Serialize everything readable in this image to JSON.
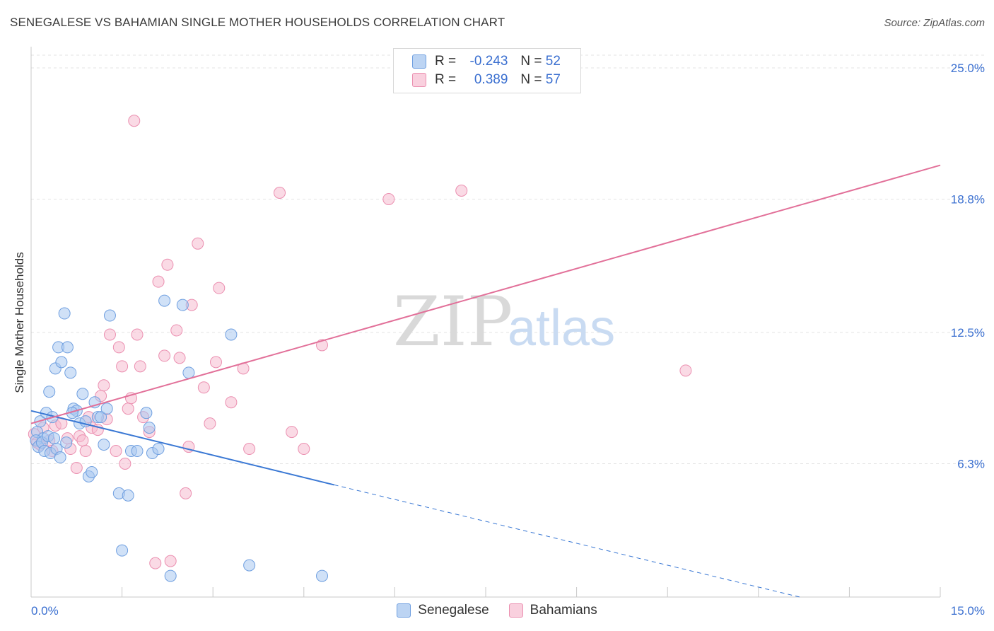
{
  "title": "SENEGALESE VS BAHAMIAN SINGLE MOTHER HOUSEHOLDS CORRELATION CHART",
  "source": "Source: ZipAtlas.com",
  "watermark": {
    "zip": "ZIP",
    "atlas": "atlas"
  },
  "legend": {
    "r_label": "R =",
    "n_label": "N =",
    "series1": {
      "r": "-0.243",
      "n": "52"
    },
    "series2": {
      "r": "0.389",
      "n": "57"
    }
  },
  "colors": {
    "blue_fill": "#a9c8f0",
    "blue_stroke": "#6f9fe0",
    "blue_line": "#3a78d4",
    "pink_fill": "#f6bcd0",
    "pink_stroke": "#eb8fb0",
    "pink_line": "#e27099",
    "tick_label": "#3a6fd0"
  },
  "chart_data": {
    "type": "scatter",
    "title": "SENEGALESE VS BAHAMIAN SINGLE MOTHER HOUSEHOLDS CORRELATION CHART",
    "xlabel": "",
    "ylabel": "Single Mother Households",
    "xlim": [
      0,
      15
    ],
    "ylim": [
      0,
      25.6
    ],
    "x_tick_labels": [
      "0.0%",
      "15.0%"
    ],
    "y_ticks": [
      6.3,
      12.5,
      18.8,
      25.0
    ],
    "y_tick_labels": [
      "6.3%",
      "12.5%",
      "18.8%",
      "25.0%"
    ],
    "series": [
      {
        "name": "Senegalese",
        "trend": {
          "x0": 0,
          "y0": 8.8,
          "x1": 5.0,
          "y1": 5.3,
          "dash_to_x": 15.0,
          "dash_to_y": -1.6
        },
        "points": [
          [
            0.1,
            7.8
          ],
          [
            0.15,
            8.3
          ],
          [
            0.2,
            7.5
          ],
          [
            0.25,
            8.7
          ],
          [
            0.3,
            9.7
          ],
          [
            0.35,
            8.5
          ],
          [
            0.4,
            10.8
          ],
          [
            0.45,
            11.8
          ],
          [
            0.5,
            11.1
          ],
          [
            0.55,
            13.4
          ],
          [
            0.6,
            11.8
          ],
          [
            0.65,
            10.6
          ],
          [
            0.7,
            8.9
          ],
          [
            0.75,
            8.8
          ],
          [
            0.8,
            8.2
          ],
          [
            0.85,
            9.6
          ],
          [
            0.9,
            8.3
          ],
          [
            0.95,
            5.7
          ],
          [
            1.0,
            5.9
          ],
          [
            1.05,
            9.2
          ],
          [
            1.1,
            8.5
          ],
          [
            1.15,
            8.5
          ],
          [
            1.2,
            7.2
          ],
          [
            1.25,
            8.9
          ],
          [
            1.3,
            13.3
          ],
          [
            1.45,
            4.9
          ],
          [
            1.6,
            4.8
          ],
          [
            1.65,
            6.9
          ],
          [
            1.75,
            6.9
          ],
          [
            1.5,
            2.2
          ],
          [
            1.9,
            8.7
          ],
          [
            1.95,
            8.0
          ],
          [
            2.0,
            6.8
          ],
          [
            2.1,
            7.0
          ],
          [
            2.2,
            14.0
          ],
          [
            2.3,
            1.0
          ],
          [
            2.5,
            13.8
          ],
          [
            2.6,
            10.6
          ],
          [
            3.3,
            12.4
          ],
          [
            3.6,
            1.5
          ],
          [
            4.8,
            1.0
          ],
          [
            0.08,
            7.4
          ],
          [
            0.12,
            7.1
          ],
          [
            0.18,
            7.3
          ],
          [
            0.22,
            6.9
          ],
          [
            0.28,
            7.6
          ],
          [
            0.32,
            6.8
          ],
          [
            0.38,
            7.5
          ],
          [
            0.42,
            7.0
          ],
          [
            0.48,
            6.6
          ],
          [
            0.58,
            7.3
          ],
          [
            0.68,
            8.7
          ]
        ]
      },
      {
        "name": "Bahamians",
        "trend": {
          "x0": 0,
          "y0": 8.2,
          "x1": 15.0,
          "y1": 20.4
        },
        "points": [
          [
            0.05,
            7.7
          ],
          [
            0.1,
            7.3
          ],
          [
            0.15,
            7.2
          ],
          [
            0.2,
            8.0
          ],
          [
            0.3,
            7.4
          ],
          [
            0.35,
            6.9
          ],
          [
            0.4,
            8.1
          ],
          [
            0.5,
            8.2
          ],
          [
            0.6,
            7.5
          ],
          [
            0.65,
            7.0
          ],
          [
            0.75,
            6.1
          ],
          [
            0.8,
            7.6
          ],
          [
            0.85,
            7.4
          ],
          [
            0.9,
            6.9
          ],
          [
            0.95,
            8.5
          ],
          [
            1.0,
            8.0
          ],
          [
            1.1,
            7.9
          ],
          [
            1.15,
            9.5
          ],
          [
            1.2,
            10.0
          ],
          [
            1.25,
            8.4
          ],
          [
            1.3,
            12.4
          ],
          [
            1.4,
            6.9
          ],
          [
            1.45,
            11.8
          ],
          [
            1.5,
            10.9
          ],
          [
            1.55,
            6.3
          ],
          [
            1.6,
            8.9
          ],
          [
            1.65,
            9.4
          ],
          [
            1.7,
            22.5
          ],
          [
            1.75,
            12.4
          ],
          [
            1.8,
            10.9
          ],
          [
            1.85,
            8.5
          ],
          [
            1.95,
            7.8
          ],
          [
            2.05,
            1.6
          ],
          [
            2.1,
            14.9
          ],
          [
            2.2,
            11.4
          ],
          [
            2.25,
            15.7
          ],
          [
            2.3,
            1.7
          ],
          [
            2.4,
            12.6
          ],
          [
            2.45,
            11.3
          ],
          [
            2.55,
            4.9
          ],
          [
            2.6,
            7.1
          ],
          [
            2.65,
            13.8
          ],
          [
            2.75,
            16.7
          ],
          [
            2.85,
            9.9
          ],
          [
            2.95,
            8.2
          ],
          [
            3.05,
            11.1
          ],
          [
            3.1,
            14.6
          ],
          [
            3.3,
            9.2
          ],
          [
            3.5,
            10.8
          ],
          [
            3.6,
            7.0
          ],
          [
            4.1,
            19.1
          ],
          [
            4.3,
            7.8
          ],
          [
            4.5,
            7.0
          ],
          [
            4.8,
            11.9
          ],
          [
            5.9,
            18.8
          ],
          [
            7.1,
            19.2
          ],
          [
            10.8,
            10.7
          ]
        ]
      }
    ]
  }
}
